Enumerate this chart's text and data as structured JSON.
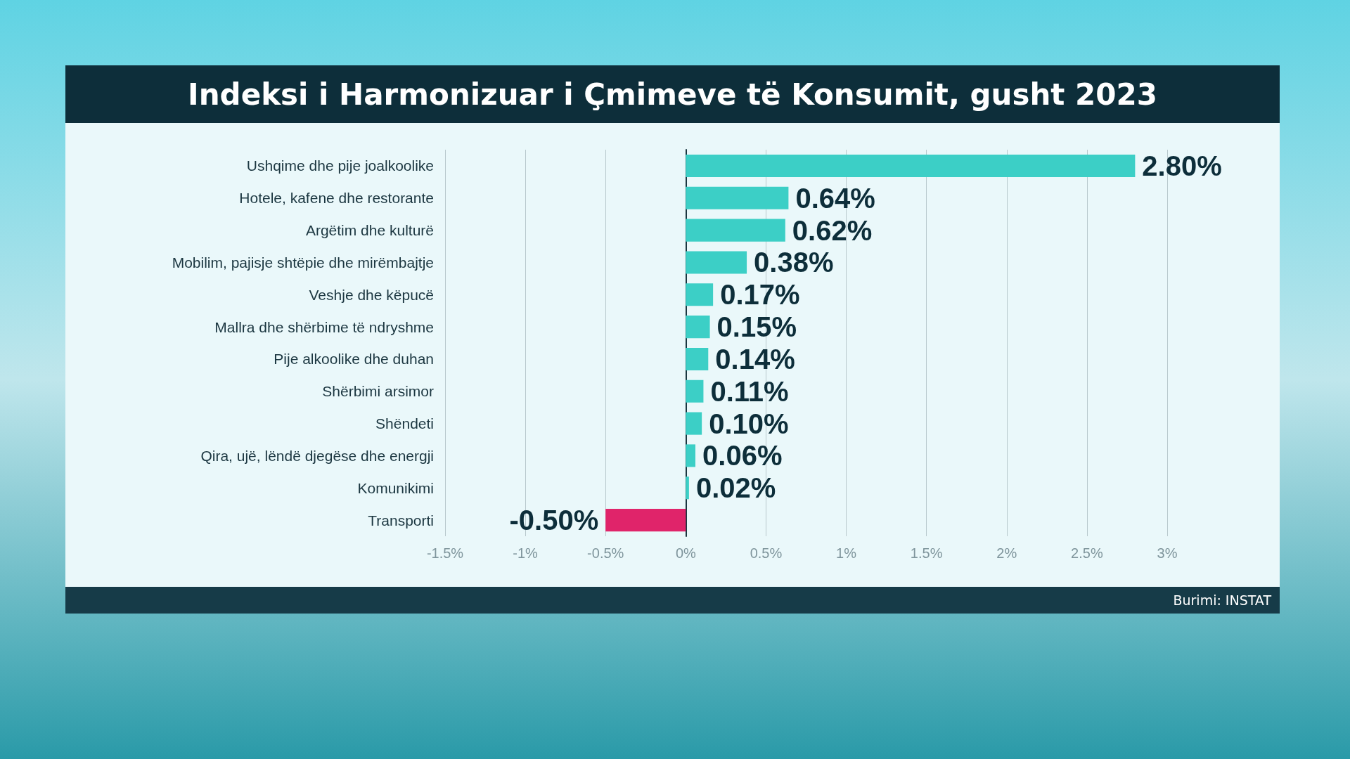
{
  "chart_data": {
    "type": "bar",
    "orientation": "horizontal",
    "title": "Indeksi i Harmonizuar i Çmimeve të Konsumit, gusht 2023",
    "categories": [
      "Ushqime dhe pije joalkoolike",
      "Hotele, kafene dhe restorante",
      "Argëtim dhe kulturë",
      "Mobilim, pajisje shtëpie dhe mirëmbajtje",
      "Veshje dhe këpucë",
      "Mallra dhe shërbime të ndryshme",
      "Pije alkoolike dhe duhan",
      "Shërbimi arsimor",
      "Shëndeti",
      "Qira, ujë, lëndë djegëse dhe energji",
      "Komunikimi",
      "Transporti"
    ],
    "values": [
      2.8,
      0.64,
      0.62,
      0.38,
      0.17,
      0.15,
      0.14,
      0.11,
      0.1,
      0.06,
      0.02,
      -0.5
    ],
    "value_labels": [
      "2.80%",
      "0.64%",
      "0.62%",
      "0.38%",
      "0.17%",
      "0.15%",
      "0.14%",
      "0.11%",
      "0.10%",
      "0.06%",
      "0.02%",
      "-0.50%"
    ],
    "colors": [
      "#3ccfc6",
      "#3ccfc6",
      "#3ccfc6",
      "#3ccfc6",
      "#3ccfc6",
      "#3ccfc6",
      "#3ccfc6",
      "#3ccfc6",
      "#3ccfc6",
      "#3ccfc6",
      "#3ccfc6",
      "#e0246a"
    ],
    "xlim": [
      -1.5,
      3
    ],
    "xticks": [
      {
        "value": -1.5,
        "label": "-1.5%"
      },
      {
        "value": -1,
        "label": "-1%"
      },
      {
        "value": -0.5,
        "label": "-0.5%"
      },
      {
        "value": 0,
        "label": "0%"
      },
      {
        "value": 0.5,
        "label": "0.5%"
      },
      {
        "value": 1,
        "label": "1%"
      },
      {
        "value": 1.5,
        "label": "1.5%"
      },
      {
        "value": 2,
        "label": "2%"
      },
      {
        "value": 2.5,
        "label": "2.5%"
      },
      {
        "value": 3,
        "label": "3%"
      }
    ],
    "grid": "x",
    "annotations": [
      "Burimi: INSTAT"
    ]
  }
}
